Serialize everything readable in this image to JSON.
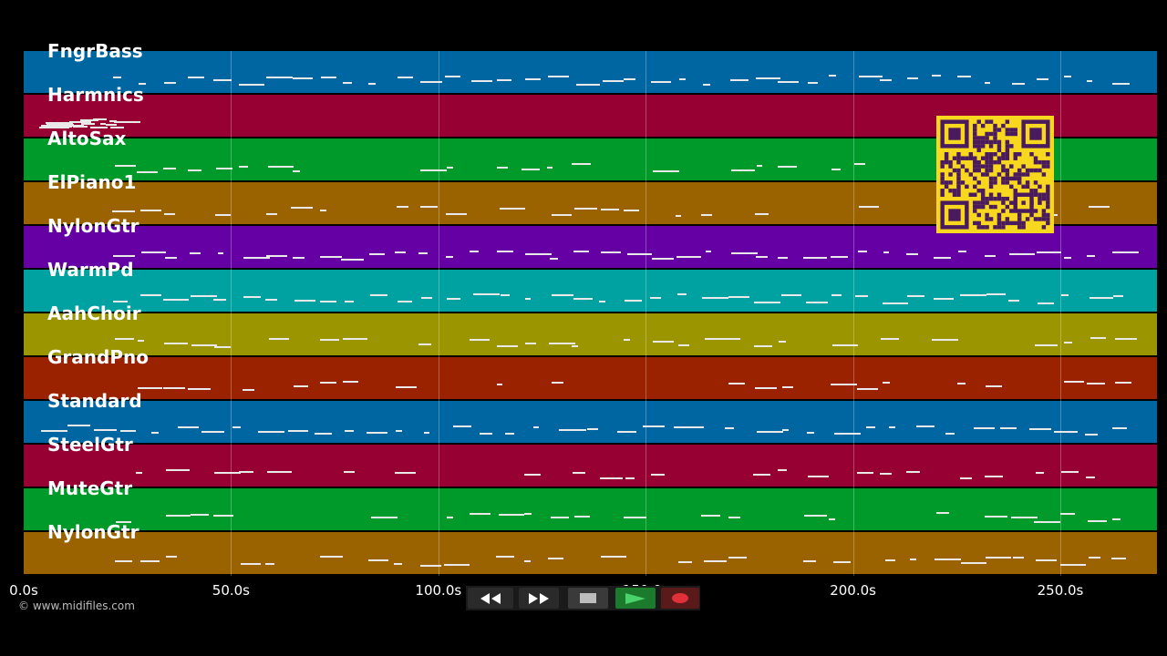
{
  "tracks": [
    {
      "name": "FngrBass",
      "color": "#0066a1"
    },
    {
      "name": "Harmnics",
      "color": "#960032"
    },
    {
      "name": "AltoSax",
      "color": "#009a2a"
    },
    {
      "name": "ElPiano1",
      "color": "#9b6200"
    },
    {
      "name": "NylonGtr",
      "color": "#6500a4"
    },
    {
      "name": "WarmPd",
      "color": "#00a1a1"
    },
    {
      "name": "AahChoir",
      "color": "#9b9600"
    },
    {
      "name": "GrandPno",
      "color": "#9b2200"
    },
    {
      "name": "Standard",
      "color": "#0066a1"
    },
    {
      "name": "SteelGtr",
      "color": "#960032"
    },
    {
      "name": "MuteGtr",
      "color": "#009a2a"
    },
    {
      "name": "NylonGtr",
      "color": "#9b6200"
    }
  ],
  "timeline": {
    "ticks": [
      "0.0s",
      "50.0s",
      "100.0s",
      "150.0s",
      "200.0s",
      "250.0s"
    ],
    "tick_values": [
      0,
      50,
      100,
      150,
      200,
      250
    ],
    "max_seconds": 273
  },
  "copyright": "© www.midifiles.com",
  "controls": {
    "rewind_icon": "rewind-icon",
    "fast_forward_icon": "fast-forward-icon",
    "stop_icon": "stop-icon",
    "play_icon": "play-icon",
    "record_icon": "record-icon"
  },
  "qr_code_icon": "qr-code-icon"
}
